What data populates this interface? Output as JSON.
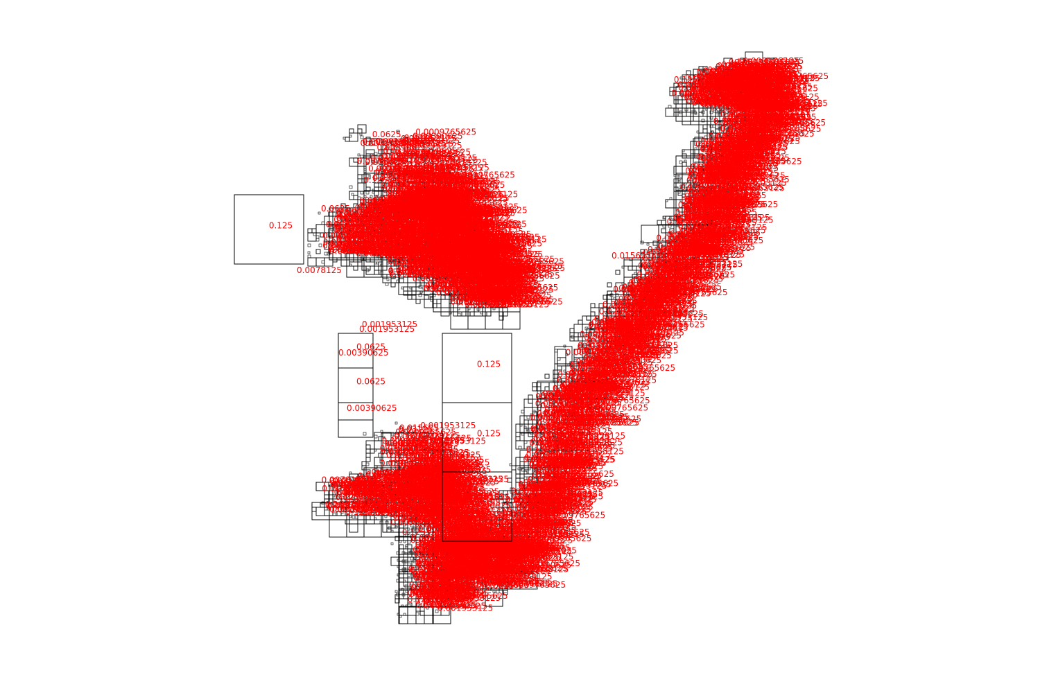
{
  "colors": {
    "label": "#ff0000",
    "cell_stroke": "#000000",
    "background": "#ffffff"
  },
  "labels": {
    "big_1": "0.125",
    "big_2": "0.125",
    "big_3": "0.125",
    "big_4": "0.125",
    "mid_1": "0.0625",
    "mid_2": "0.0625",
    "small_1": "0.03125",
    "small_2": "0.03125",
    "small_3": "0.03125",
    "small_4": "0.015625",
    "small_5": "0.00390625",
    "small_6": "0.001953125",
    "small_7": "0.001953125",
    "small_8": "0.0078125",
    "small_9": "0.001953125",
    "small_10": "0.0625",
    "small_11": "0.00390625"
  },
  "label_pool": [
    "0.125",
    "0.0625",
    "0.03125",
    "0.015625",
    "0.0078125",
    "0.00390625",
    "0.001953125",
    "0.0009765625"
  ]
}
